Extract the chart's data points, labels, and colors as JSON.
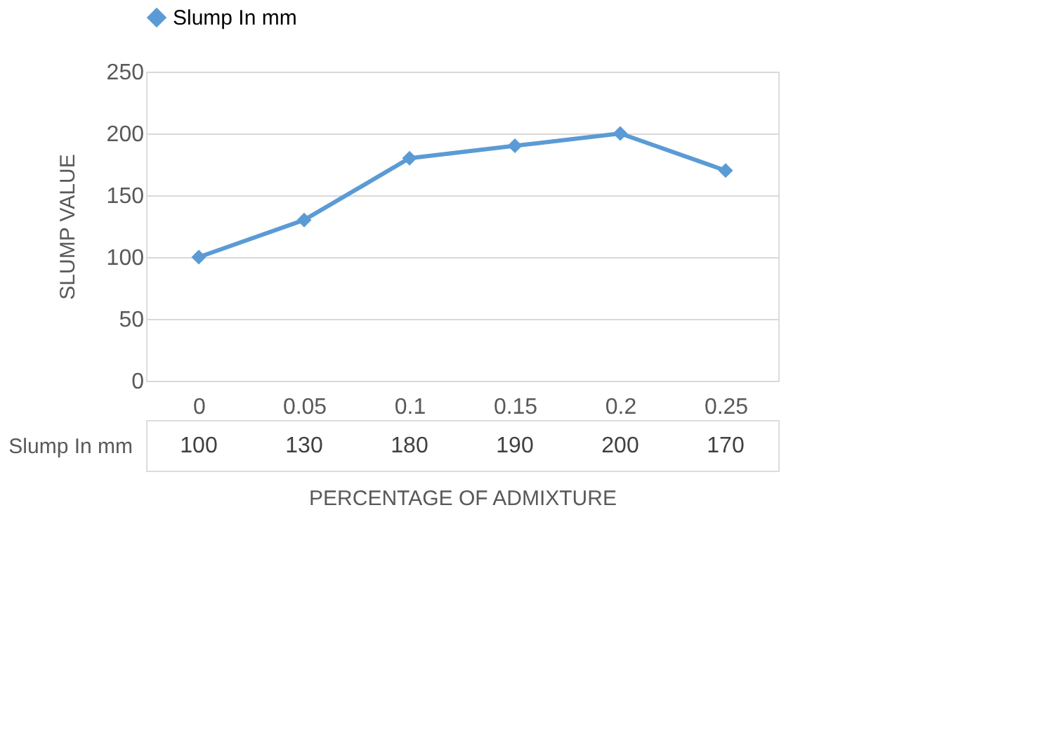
{
  "chart_data": {
    "type": "line",
    "xlabel": "PERCENTAGE OF ADMIXTURE",
    "ylabel": "SLUMP VALUE",
    "categories": [
      "0",
      "0.05",
      "0.1",
      "0.15",
      "0.2",
      "0.25"
    ],
    "series": [
      {
        "name": "Slump In mm",
        "color": "#5b9bd5",
        "values": [
          100,
          130,
          180,
          190,
          200,
          170
        ]
      }
    ],
    "ylim": [
      0,
      250
    ],
    "yticks": [
      0,
      50,
      100,
      150,
      200,
      250
    ],
    "grid": "y",
    "legend": "top",
    "marker": "diamond",
    "line_style": "solid",
    "data_labels": true
  }
}
